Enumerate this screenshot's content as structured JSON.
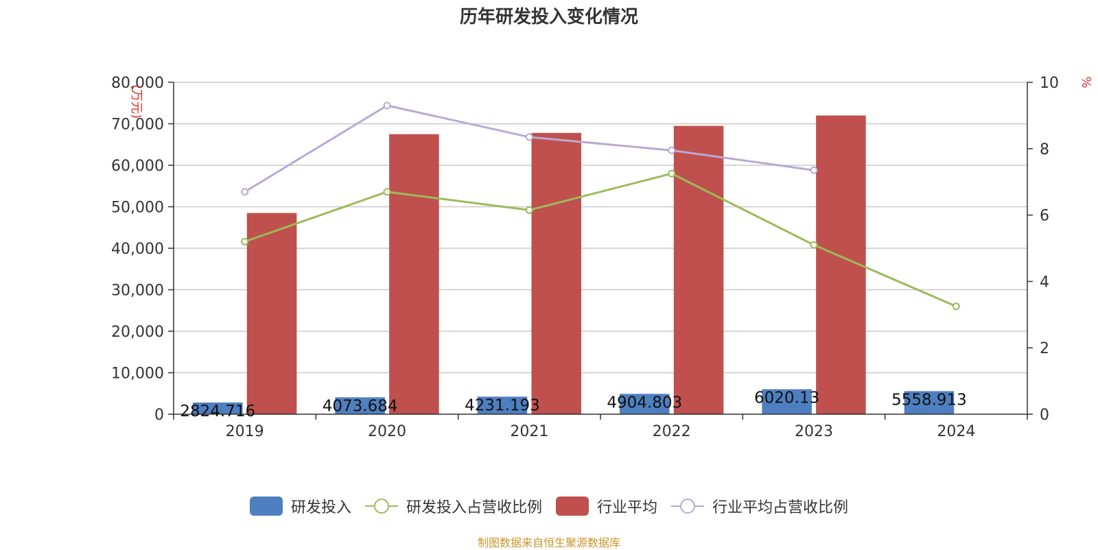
{
  "title": "历年研发投入变化情况",
  "source": "制图数据来自恒生聚源数据库",
  "colors": {
    "rd_bar": "#4e7fc0",
    "industry_bar": "#c0504d",
    "rd_ratio_line": "#9bbb59",
    "industry_ratio_line": "#b8a9d4"
  },
  "chart_data": {
    "type": "bar",
    "categories": [
      "2019",
      "2020",
      "2021",
      "2022",
      "2023",
      "2024"
    ],
    "y_left_label": "(万元)",
    "y_right_label": "%",
    "y_left_lim": [
      0,
      80000
    ],
    "y_left_ticks": [
      "0",
      "10,000",
      "20,000",
      "30,000",
      "40,000",
      "50,000",
      "60,000",
      "70,000",
      "80,000"
    ],
    "y_right_lim": [
      0,
      10
    ],
    "y_right_ticks": [
      "0",
      "2",
      "4",
      "6",
      "8",
      "10"
    ],
    "grid": true,
    "legend_position": "bottom",
    "series": [
      {
        "name": "研发投入",
        "kind": "bar",
        "axis": "left",
        "values": [
          2824.716,
          4073.684,
          4231.193,
          4904.803,
          6020.13,
          5558.913
        ],
        "labels": [
          "2824.716",
          "4073.684",
          "4231.193",
          "4904.803",
          "6020.13",
          "5558.913"
        ]
      },
      {
        "name": "研发投入占营收比例",
        "kind": "line",
        "axis": "right",
        "values": [
          5.2,
          6.7,
          6.15,
          7.25,
          5.1,
          3.25
        ]
      },
      {
        "name": "行业平均",
        "kind": "bar",
        "axis": "left",
        "values": [
          48500,
          67500,
          67800,
          69500,
          72000,
          null
        ]
      },
      {
        "name": "行业平均占营收比例",
        "kind": "line",
        "axis": "right",
        "values": [
          6.7,
          9.3,
          8.35,
          7.95,
          7.35,
          null
        ]
      }
    ]
  }
}
